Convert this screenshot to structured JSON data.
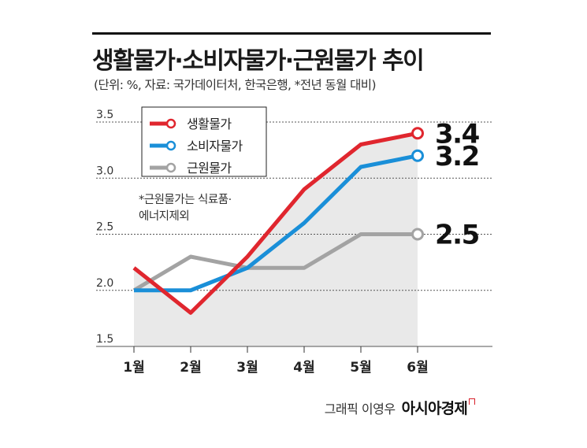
{
  "title": "생활물가·소비자물가·근원물가 추이",
  "subtitle": "(단위: %, 자료: 국가데이터처, 한국은행, *전년 동월 대비)",
  "note_lines": [
    "*근원물가는 식료품·",
    "에너지제외"
  ],
  "credit": {
    "name": "그래픽 이영우",
    "brand": "아시아경제"
  },
  "colors": {
    "red": "#e0262e",
    "blue": "#1a8fd8",
    "gray": "#a3a3a3",
    "fill": "#e9e9e9"
  },
  "chart_data": {
    "type": "line",
    "categories": [
      "1월",
      "2월",
      "3월",
      "4월",
      "5월",
      "6월"
    ],
    "ylim": [
      1.5,
      3.5
    ],
    "yticks": [
      "3.5",
      "3.0",
      "2.5",
      "2.0",
      "1.5"
    ],
    "legend_position": "top-left",
    "end_labels": [
      "3.4",
      "3.2",
      "2.5"
    ],
    "series": [
      {
        "name": "생활물가",
        "color": "#e0262e",
        "values": [
          2.2,
          1.8,
          2.3,
          2.9,
          3.3,
          3.4
        ]
      },
      {
        "name": "소비자물가",
        "color": "#1a8fd8",
        "values": [
          2.0,
          2.0,
          2.2,
          2.6,
          3.1,
          3.2
        ]
      },
      {
        "name": "근원물가",
        "color": "#a3a3a3",
        "values": [
          2.0,
          2.3,
          2.2,
          2.2,
          2.5,
          2.5
        ]
      }
    ]
  }
}
